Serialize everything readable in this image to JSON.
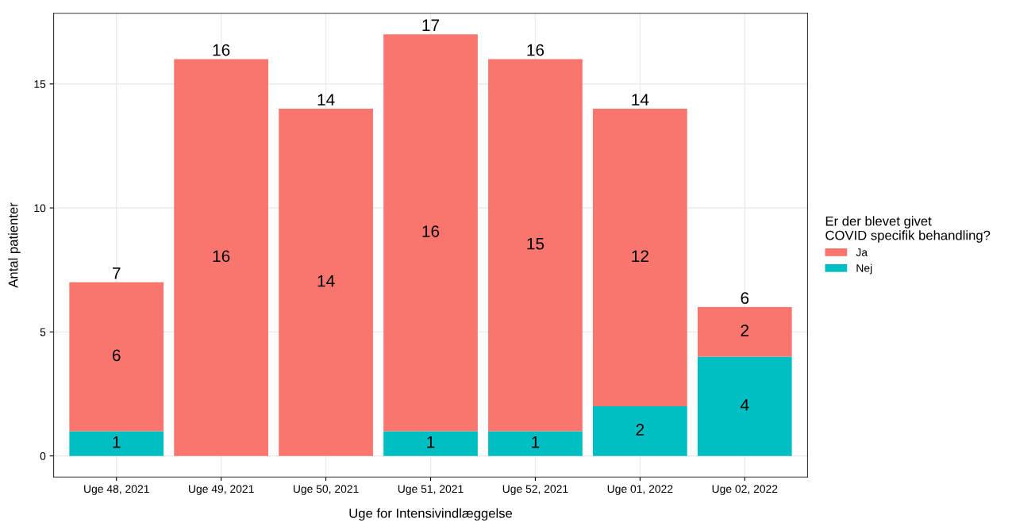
{
  "chart_data": {
    "type": "bar",
    "stacked": true,
    "xlabel": "Uge for Intensivindlæggelse",
    "ylabel": "Antal patienter",
    "legend_title": "Er der blevet givet\nCOVID specifik behandling?",
    "categories": [
      "Uge 48, 2021",
      "Uge 49, 2021",
      "Uge 50, 2021",
      "Uge 51, 2021",
      "Uge 52, 2021",
      "Uge 01, 2022",
      "Uge 02, 2022"
    ],
    "series": [
      {
        "name": "Nej",
        "color": "#00bfc4",
        "values": [
          1,
          0,
          0,
          1,
          1,
          2,
          4
        ],
        "value_labels": [
          "1",
          null,
          null,
          "1",
          "1",
          "2",
          "4"
        ]
      },
      {
        "name": "Ja",
        "color": "#f8766d",
        "values": [
          6,
          16,
          14,
          16,
          15,
          12,
          2
        ],
        "value_labels": [
          "6",
          "16",
          "14",
          "16",
          "15",
          "12",
          "2"
        ]
      }
    ],
    "totals": [
      "7",
      "16",
      "14",
      "17",
      "16",
      "14",
      "6"
    ],
    "ylim": [
      -0.85,
      17.85
    ],
    "yticks": [
      0,
      5,
      10,
      15
    ],
    "grid": true,
    "legend": "right"
  }
}
